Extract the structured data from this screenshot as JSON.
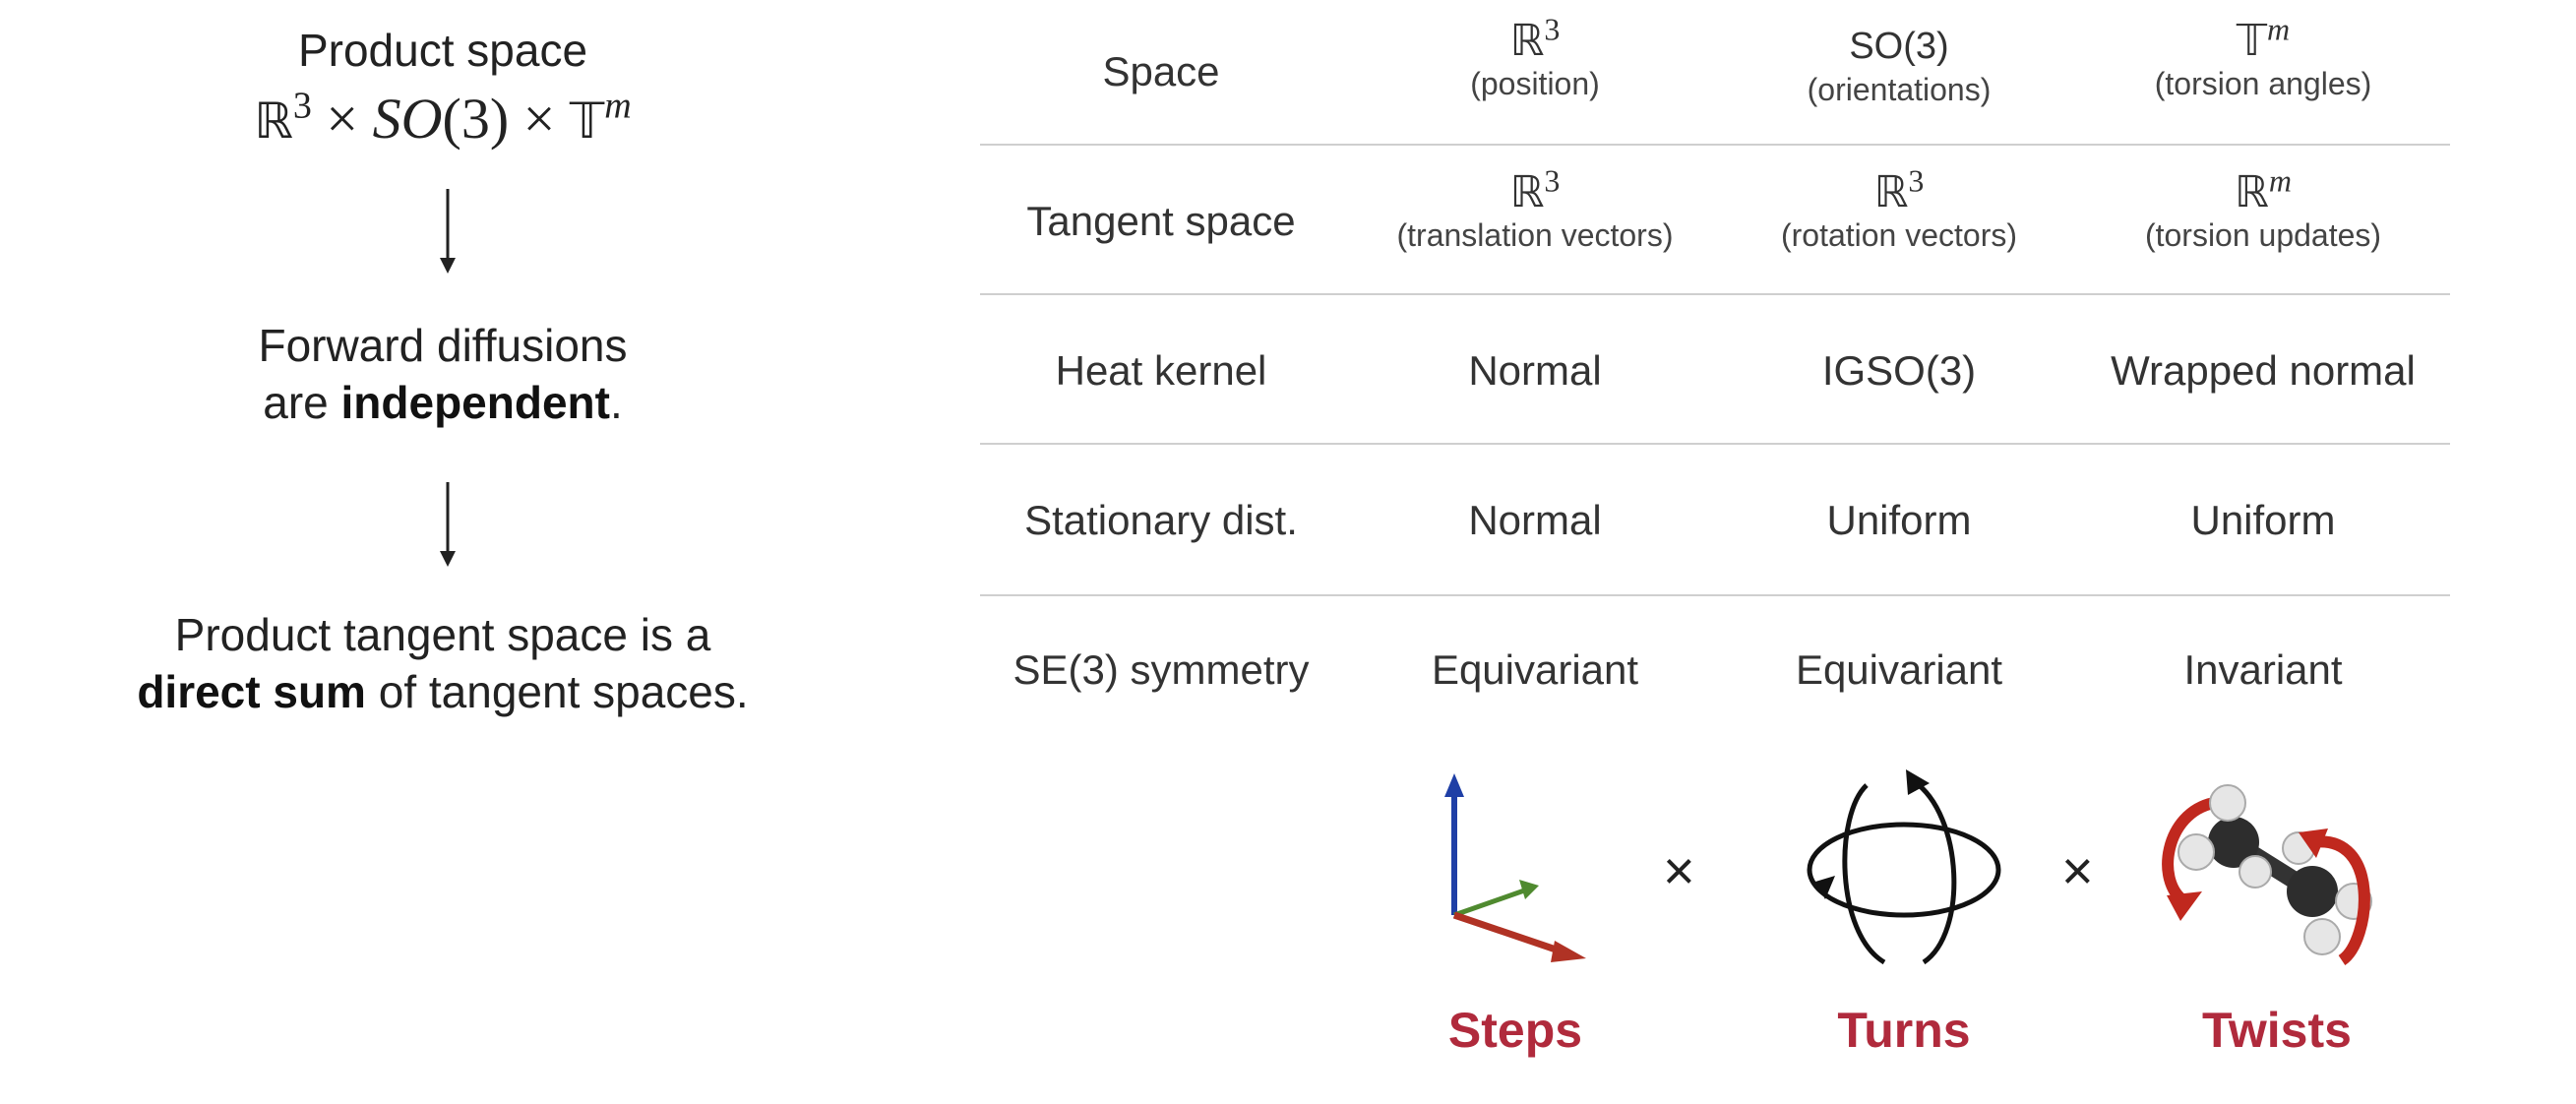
{
  "left": {
    "title": "Product space",
    "formula": {
      "r": "ℝ",
      "r_exp": "3",
      "times1": "×",
      "so": "SO",
      "so_arg": "(3)",
      "times2": "×",
      "t": "𝕋",
      "t_exp": "m"
    },
    "step2_line1": "Forward diffusions",
    "step2_line2_pre": "are ",
    "step2_line2_bold": "independent",
    "step2_line2_post": ".",
    "step3_line1": "Product tangent space is a",
    "step3_line2_bold": "direct sum",
    "step3_line2_post": " of tangent spaces."
  },
  "table": {
    "header": {
      "label": "Space",
      "col1_sym": "ℝ",
      "col1_exp": "3",
      "col1_sub": "(position)",
      "col2_main": "SO(3)",
      "col2_sub": "(orientations)",
      "col3_sym": "𝕋",
      "col3_exp": "m",
      "col3_sub": "(torsion angles)"
    },
    "tangent": {
      "label": "Tangent space",
      "col1_sym": "ℝ",
      "col1_exp": "3",
      "col1_sub": "(translation vectors)",
      "col2_sym": "ℝ",
      "col2_exp": "3",
      "col2_sub": "(rotation vectors)",
      "col3_sym": "ℝ",
      "col3_exp": "m",
      "col3_sub": "(torsion updates)"
    },
    "heat": {
      "label": "Heat kernel",
      "col1": "Normal",
      "col2": "IGSO(3)",
      "col3": "Wrapped normal"
    },
    "stationary": {
      "label": "Stationary dist.",
      "col1": "Normal",
      "col2": "Uniform",
      "col3": "Uniform"
    },
    "symmetry": {
      "label": "SE(3) symmetry",
      "col1": "Equivariant",
      "col2": "Equivariant",
      "col3": "Invariant"
    }
  },
  "bottom": {
    "times_a": "×",
    "times_b": "×",
    "caption1": "Steps",
    "caption2": "Turns",
    "caption3": "Twists"
  },
  "colors": {
    "caption": "#b02a3c",
    "axis_blue": "#1f3fa6",
    "axis_green": "#4f8a2f",
    "axis_red": "#b03224",
    "twist_arrow": "#c0281e"
  }
}
